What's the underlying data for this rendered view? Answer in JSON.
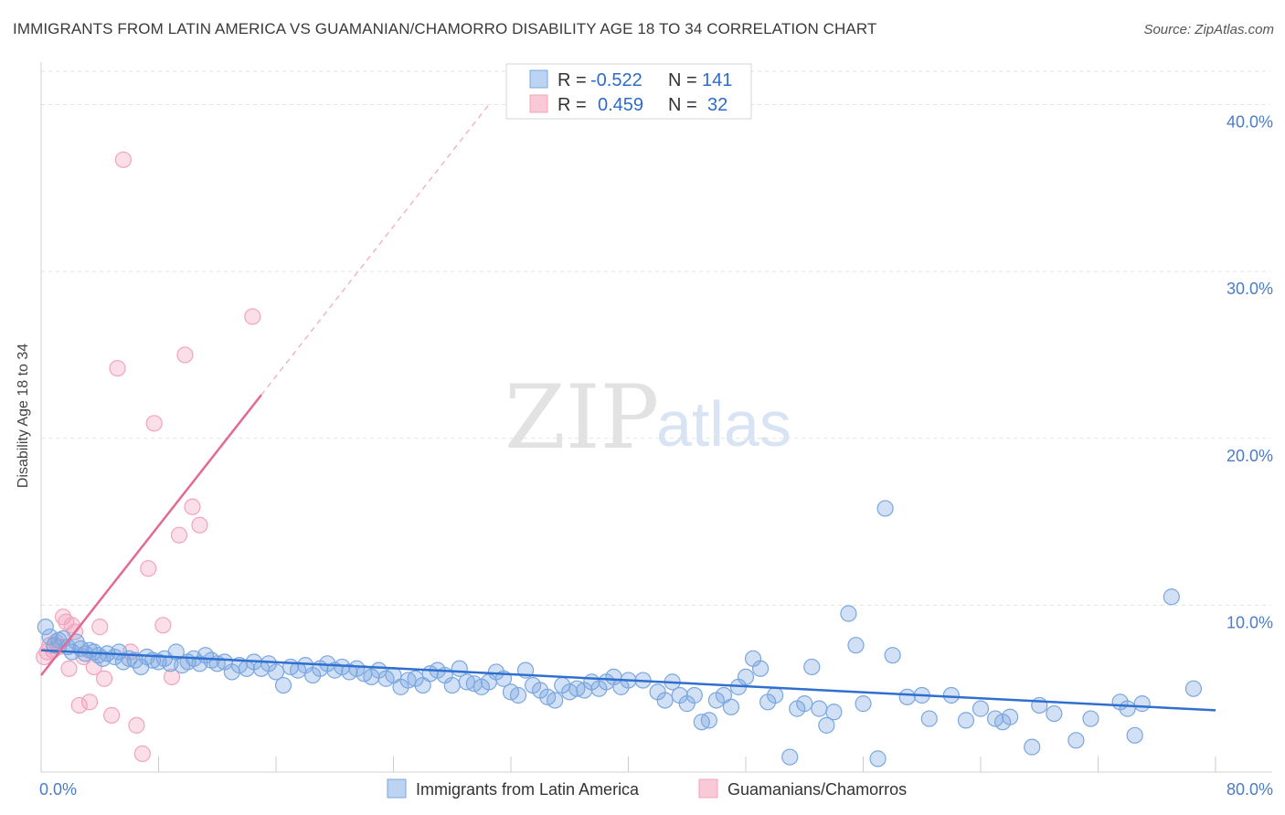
{
  "title": "IMMIGRANTS FROM LATIN AMERICA VS GUAMANIAN/CHAMORRO DISABILITY AGE 18 TO 34 CORRELATION CHART",
  "source": "Source: ZipAtlas.com",
  "watermark": {
    "zip": "ZIP",
    "atlas": "atlas"
  },
  "colors": {
    "blue": "#7aa7e0",
    "blue_line": "#2f6fd0",
    "pink": "#f2a4bc",
    "pink_line": "#e46a94",
    "tick": "#4a7cc9"
  },
  "legend_top": {
    "rows": [
      {
        "r_label": "R =",
        "r_value": "-0.522",
        "n_label": "N =",
        "n_value": "141"
      },
      {
        "r_label": "R =",
        "r_value": "0.459",
        "n_label": "N =",
        "n_value": "32"
      }
    ]
  },
  "chart_data": {
    "type": "scatter",
    "xlabel": "",
    "ylabel": "Disability Age 18 to 34",
    "xlim": [
      0,
      80
    ],
    "ylim": [
      0,
      42
    ],
    "x_tick_labels": [
      "0.0%",
      "80.0%"
    ],
    "y_ticks": [
      10,
      20,
      30,
      40
    ],
    "y_tick_labels": [
      "10.0%",
      "20.0%",
      "30.0%",
      "40.0%"
    ],
    "grid": "horizontal dashed",
    "legend_position": "bottom",
    "series": [
      {
        "name": "Immigrants from Latin America",
        "r": -0.522,
        "n": 141,
        "trend": {
          "x": [
            0,
            80
          ],
          "y": [
            7.3,
            3.7
          ]
        },
        "points": [
          [
            0.3,
            8.7
          ],
          [
            0.6,
            8.1
          ],
          [
            0.9,
            7.6
          ],
          [
            1.2,
            7.9
          ],
          [
            1.5,
            8.0
          ],
          [
            1.8,
            7.5
          ],
          [
            2.1,
            7.2
          ],
          [
            2.4,
            7.8
          ],
          [
            2.7,
            7.4
          ],
          [
            3.0,
            7.1
          ],
          [
            3.3,
            7.3
          ],
          [
            3.6,
            7.2
          ],
          [
            3.9,
            7.0
          ],
          [
            4.2,
            6.8
          ],
          [
            4.5,
            7.1
          ],
          [
            5.0,
            6.9
          ],
          [
            5.3,
            7.2
          ],
          [
            5.6,
            6.6
          ],
          [
            6.0,
            6.8
          ],
          [
            6.4,
            6.7
          ],
          [
            6.8,
            6.3
          ],
          [
            7.2,
            6.9
          ],
          [
            7.6,
            6.7
          ],
          [
            8.0,
            6.6
          ],
          [
            8.4,
            6.8
          ],
          [
            8.8,
            6.5
          ],
          [
            9.2,
            7.2
          ],
          [
            9.6,
            6.4
          ],
          [
            10.0,
            6.6
          ],
          [
            10.4,
            6.8
          ],
          [
            10.8,
            6.5
          ],
          [
            11.2,
            7.0
          ],
          [
            11.6,
            6.7
          ],
          [
            12.0,
            6.5
          ],
          [
            12.5,
            6.6
          ],
          [
            13.0,
            6.0
          ],
          [
            13.5,
            6.4
          ],
          [
            14.0,
            6.2
          ],
          [
            14.5,
            6.6
          ],
          [
            15.0,
            6.2
          ],
          [
            15.5,
            6.5
          ],
          [
            16.0,
            6.0
          ],
          [
            16.5,
            5.2
          ],
          [
            17.0,
            6.3
          ],
          [
            17.5,
            6.1
          ],
          [
            18.0,
            6.4
          ],
          [
            18.5,
            5.8
          ],
          [
            19.0,
            6.2
          ],
          [
            19.5,
            6.5
          ],
          [
            20.0,
            6.1
          ],
          [
            20.5,
            6.3
          ],
          [
            21.0,
            6.0
          ],
          [
            21.5,
            6.2
          ],
          [
            22.0,
            5.9
          ],
          [
            22.5,
            5.7
          ],
          [
            23.0,
            6.1
          ],
          [
            23.5,
            5.6
          ],
          [
            24.0,
            5.8
          ],
          [
            24.5,
            5.1
          ],
          [
            25.0,
            5.5
          ],
          [
            25.5,
            5.6
          ],
          [
            26.0,
            5.2
          ],
          [
            26.5,
            5.9
          ],
          [
            27.0,
            6.1
          ],
          [
            27.5,
            5.8
          ],
          [
            28.0,
            5.2
          ],
          [
            28.5,
            6.2
          ],
          [
            29.0,
            5.4
          ],
          [
            29.5,
            5.3
          ],
          [
            30.0,
            5.1
          ],
          [
            30.5,
            5.4
          ],
          [
            31.0,
            6.0
          ],
          [
            31.5,
            5.6
          ],
          [
            32.0,
            4.8
          ],
          [
            32.5,
            4.6
          ],
          [
            33.0,
            6.1
          ],
          [
            33.5,
            5.2
          ],
          [
            34.0,
            4.9
          ],
          [
            34.5,
            4.5
          ],
          [
            35.0,
            4.3
          ],
          [
            35.5,
            5.2
          ],
          [
            36.0,
            4.8
          ],
          [
            36.5,
            5.0
          ],
          [
            37.0,
            4.9
          ],
          [
            37.5,
            5.4
          ],
          [
            38.0,
            5.0
          ],
          [
            38.5,
            5.4
          ],
          [
            39.0,
            5.7
          ],
          [
            39.5,
            5.1
          ],
          [
            40.0,
            5.5
          ],
          [
            41.0,
            5.5
          ],
          [
            42.0,
            4.8
          ],
          [
            42.5,
            4.3
          ],
          [
            43.0,
            5.4
          ],
          [
            43.5,
            4.6
          ],
          [
            44.0,
            4.1
          ],
          [
            44.5,
            4.6
          ],
          [
            45.0,
            3.0
          ],
          [
            45.5,
            3.1
          ],
          [
            46.0,
            4.3
          ],
          [
            46.5,
            4.6
          ],
          [
            47.0,
            3.9
          ],
          [
            47.5,
            5.1
          ],
          [
            48.0,
            5.7
          ],
          [
            48.5,
            6.8
          ],
          [
            49.0,
            6.2
          ],
          [
            49.5,
            4.2
          ],
          [
            50.0,
            4.6
          ],
          [
            51.0,
            0.9
          ],
          [
            51.5,
            3.8
          ],
          [
            52.0,
            4.1
          ],
          [
            52.5,
            6.3
          ],
          [
            53.0,
            3.8
          ],
          [
            53.5,
            2.8
          ],
          [
            54.0,
            3.6
          ],
          [
            55.0,
            9.5
          ],
          [
            55.5,
            7.6
          ],
          [
            56.0,
            4.1
          ],
          [
            57.0,
            0.8
          ],
          [
            57.5,
            15.8
          ],
          [
            58.0,
            7.0
          ],
          [
            59.0,
            4.5
          ],
          [
            60.0,
            4.6
          ],
          [
            60.5,
            3.2
          ],
          [
            62.0,
            4.6
          ],
          [
            63.0,
            3.1
          ],
          [
            64.0,
            3.8
          ],
          [
            65.0,
            3.2
          ],
          [
            65.5,
            3.0
          ],
          [
            66.0,
            3.3
          ],
          [
            67.5,
            1.5
          ],
          [
            68.0,
            4.0
          ],
          [
            69.0,
            3.5
          ],
          [
            70.5,
            1.9
          ],
          [
            71.5,
            3.2
          ],
          [
            73.5,
            4.2
          ],
          [
            74.0,
            3.8
          ],
          [
            74.5,
            2.2
          ],
          [
            75.0,
            4.1
          ],
          [
            77.0,
            10.5
          ],
          [
            78.5,
            5.0
          ]
        ]
      },
      {
        "name": "Guamanians/Chamorros",
        "r": 0.459,
        "n": 32,
        "trend": {
          "x": [
            0,
            15
          ],
          "y": [
            5.8,
            22.6
          ]
        },
        "trend_ext": {
          "x": [
            15,
            30.5
          ],
          "y": [
            22.6,
            40.0
          ]
        },
        "points": [
          [
            0.2,
            6.9
          ],
          [
            0.4,
            7.2
          ],
          [
            0.6,
            7.6
          ],
          [
            0.8,
            7.3
          ],
          [
            1.0,
            7.8
          ],
          [
            1.2,
            7.5
          ],
          [
            1.5,
            9.3
          ],
          [
            1.7,
            9.0
          ],
          [
            1.9,
            6.2
          ],
          [
            2.1,
            8.8
          ],
          [
            2.3,
            8.4
          ],
          [
            2.6,
            4.0
          ],
          [
            2.9,
            6.9
          ],
          [
            3.3,
            4.2
          ],
          [
            3.6,
            6.3
          ],
          [
            4.0,
            8.7
          ],
          [
            4.3,
            5.6
          ],
          [
            4.8,
            3.4
          ],
          [
            5.2,
            24.2
          ],
          [
            5.6,
            36.7
          ],
          [
            6.1,
            7.2
          ],
          [
            6.5,
            2.8
          ],
          [
            6.9,
            1.1
          ],
          [
            7.3,
            12.2
          ],
          [
            7.7,
            20.9
          ],
          [
            8.3,
            8.8
          ],
          [
            8.9,
            5.7
          ],
          [
            9.4,
            14.2
          ],
          [
            9.8,
            25.0
          ],
          [
            10.3,
            15.9
          ],
          [
            10.8,
            14.8
          ],
          [
            14.4,
            27.3
          ]
        ]
      }
    ]
  }
}
